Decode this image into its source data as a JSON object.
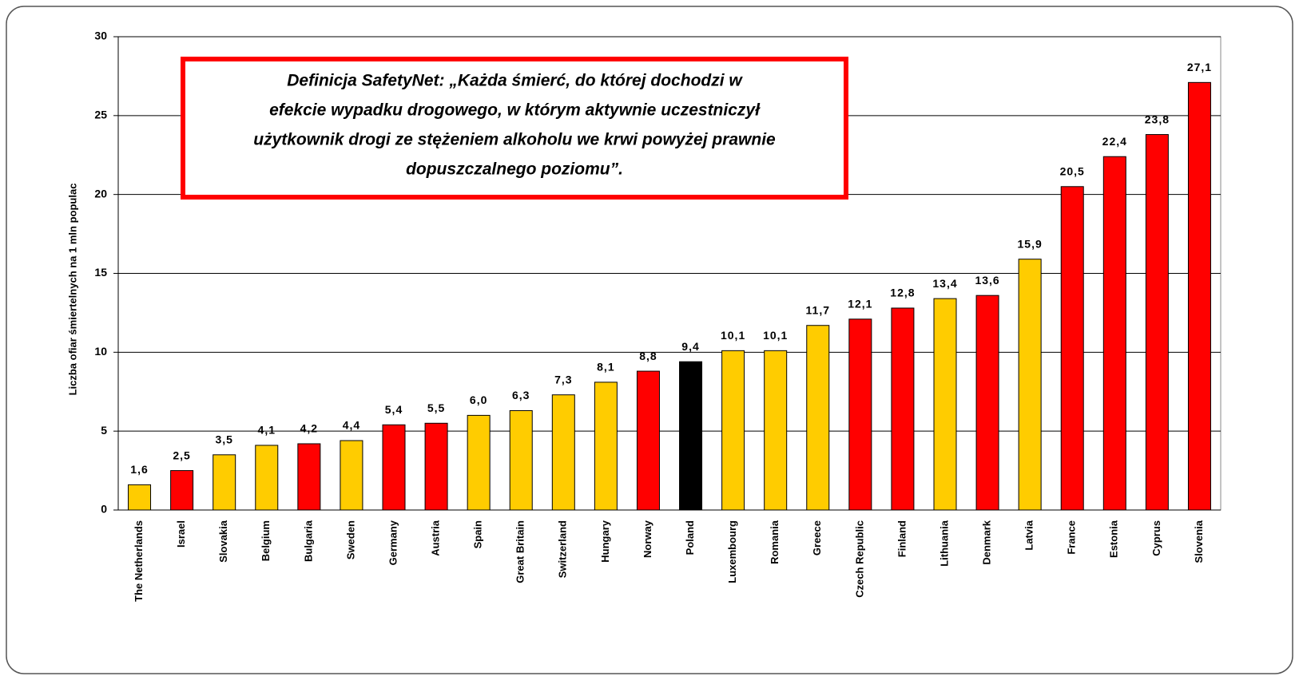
{
  "chart_data": {
    "type": "bar",
    "y_label": "Liczba ofiar śmiertelnych  na  1  mln  populac",
    "annotation": [
      "Definicja  SafetyNet: „Każda  śmierć,  do  której  dochodzi  w",
      "efekcie  wypadku  drogowego, w którym aktywnie uczestniczył",
      "użytkownik drogi  ze stężeniem alkoholu we krwi powyżej prawnie",
      "dopuszczalnego poziomu”."
    ],
    "categories": [
      "The Netherlands",
      "Israel",
      "Slovakia",
      "Belgium",
      "Bulgaria",
      "Sweden",
      "Germany",
      "Austria",
      "Spain",
      "Great Britain",
      "Switzerland",
      "Hungary",
      "Norway",
      "Poland",
      "Luxembourg",
      "Romania",
      "Greece",
      "Czech Republic",
      "Finland",
      "Lithuania",
      "Denmark",
      "Latvia",
      "France",
      "Estonia",
      "Cyprus",
      "Slovenia"
    ],
    "values": [
      1.6,
      2.5,
      3.5,
      4.1,
      4.2,
      4.4,
      5.4,
      5.5,
      6.0,
      6.3,
      7.3,
      8.1,
      8.8,
      9.4,
      10.1,
      10.1,
      11.7,
      12.1,
      12.8,
      13.4,
      13.6,
      15.9,
      20.5,
      22.4,
      23.8,
      27.1
    ],
    "value_labels": [
      "1,6",
      "2,5",
      "3,5",
      "4,1",
      "4,2",
      "4,4",
      "5,4",
      "5,5",
      "6,0",
      "6,3",
      "7,3",
      "8,1",
      "8,8",
      "9,4",
      "10,1",
      "10,1",
      "11,7",
      "12,1",
      "12,8",
      "13,4",
      "13,6",
      "15,9",
      "20,5",
      "22,4",
      "23,8",
      "27,1"
    ],
    "colors": [
      "#ffcc00",
      "#ff0000",
      "#ffcc00",
      "#ffcc00",
      "#ff0000",
      "#ffcc00",
      "#ff0000",
      "#ff0000",
      "#ffcc00",
      "#ffcc00",
      "#ffcc00",
      "#ffcc00",
      "#ff0000",
      "#000000",
      "#ffcc00",
      "#ffcc00",
      "#ffcc00",
      "#ff0000",
      "#ff0000",
      "#ffcc00",
      "#ff0000",
      "#ffcc00",
      "#ff0000",
      "#ff0000",
      "#ff0000",
      "#ff0000"
    ],
    "ylim": [
      0,
      30
    ],
    "yticks": [
      0,
      5,
      10,
      15,
      20,
      25,
      30
    ],
    "grid": true
  }
}
